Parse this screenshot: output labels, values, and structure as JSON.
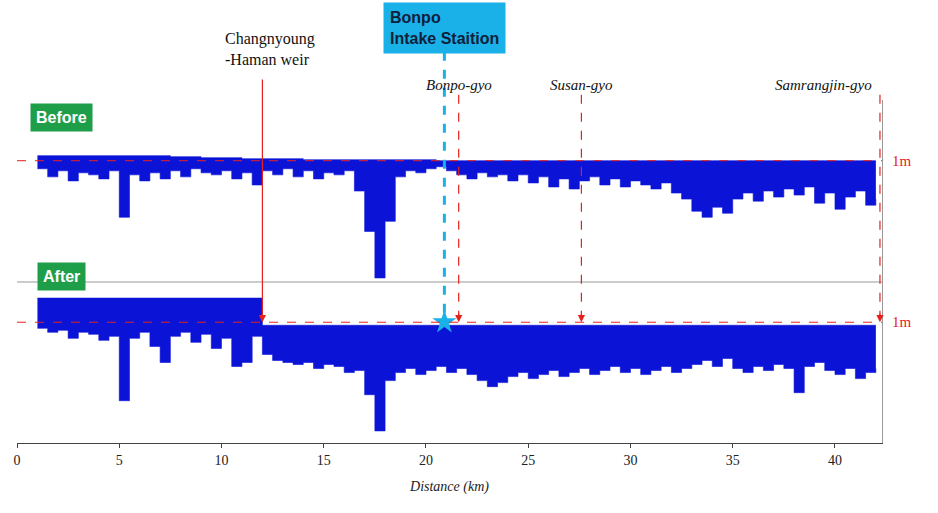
{
  "chart_data": {
    "type": "area",
    "x_label": "Distance (km)",
    "xlim": [
      0,
      42.3
    ],
    "xticks": [
      0,
      5,
      10,
      15,
      20,
      25,
      30,
      35,
      40
    ],
    "tick_labels": "x",
    "grid": false,
    "x": [
      1,
      1.5,
      2,
      2.5,
      3,
      3.5,
      4,
      4.5,
      5,
      5.5,
      6,
      6.5,
      7,
      7.5,
      8,
      8.5,
      9,
      9.5,
      10,
      10.5,
      11,
      11.5,
      12,
      12.5,
      13,
      13.5,
      14,
      14.5,
      15,
      15.5,
      16,
      16.5,
      17,
      17.5,
      18,
      18.5,
      19,
      19.5,
      20,
      20.5,
      21,
      21.5,
      22,
      22.5,
      23,
      23.5,
      24,
      24.5,
      25,
      25.5,
      26,
      26.5,
      27,
      27.5,
      28,
      28.5,
      29,
      29.5,
      30,
      30.5,
      31,
      31.5,
      32,
      32.5,
      33,
      33.5,
      34,
      34.5,
      35,
      35.5,
      36,
      36.5,
      37,
      37.5,
      38,
      38.5,
      39,
      39.5,
      40,
      40.5,
      41,
      41.5,
      42
    ],
    "panels": [
      {
        "title": "Before",
        "ylim": [
          -5,
          4
        ],
        "reference": {
          "value": 1,
          "label": "1m",
          "color": "#e8201c",
          "line_style": "dashed"
        },
        "series": [
          {
            "color": "#0b14d6",
            "base": [
              1.25,
              1.25,
              1.25,
              1.25,
              1.25,
              1.25,
              1.25,
              1.25,
              1.25,
              1.25,
              1.25,
              1.25,
              1.25,
              1.2,
              1.2,
              1.2,
              1.15,
              1.15,
              1.15,
              1.15,
              1.1,
              1.1,
              1.1,
              1.1,
              1.1,
              1.1,
              1.05,
              1.05,
              1.05,
              1.05,
              1.05,
              1.05,
              1.05,
              1.05,
              1.05,
              1.05,
              1.05,
              1.05,
              1.05,
              1.0,
              1.0,
              1.0,
              1.0,
              1.0,
              1.0,
              1.0,
              1.0,
              1.0,
              1.0,
              1.0,
              1.0,
              1.0,
              1.0,
              1.0,
              1.0,
              1.0,
              1.0,
              1.0,
              1.0,
              1.0,
              1.0,
              1.0,
              1.0,
              1.0,
              1.0,
              1.0,
              1.0,
              1.0,
              1.0,
              1.0,
              1.0,
              1.0,
              1.0,
              1.0,
              1.0,
              1.0,
              1.0,
              1.0,
              1.0,
              1.0,
              1.0,
              1.0,
              1.0
            ],
            "values": [
              0.6,
              0.2,
              0.5,
              0.0,
              0.4,
              0.3,
              0.1,
              0.5,
              -1.8,
              0.3,
              0.0,
              0.4,
              0.1,
              0.5,
              0.2,
              0.6,
              0.4,
              0.3,
              0.5,
              0.1,
              0.4,
              -0.2,
              0.5,
              0.3,
              0.6,
              0.2,
              0.5,
              0.1,
              0.4,
              0.3,
              0.5,
              -0.5,
              -2.5,
              -4.8,
              -2.0,
              0.2,
              0.5,
              0.4,
              0.6,
              0.7,
              0.5,
              0.3,
              0.1,
              0.4,
              0.2,
              0.3,
              0.0,
              0.3,
              -0.1,
              0.2,
              -0.3,
              0.1,
              -0.4,
              0.0,
              0.2,
              -0.2,
              0.1,
              -0.3,
              0.0,
              -0.2,
              -0.4,
              -0.1,
              -0.6,
              -0.9,
              -1.5,
              -1.8,
              -1.3,
              -1.6,
              -0.9,
              -0.6,
              -1.0,
              -0.5,
              -0.8,
              -0.4,
              -0.7,
              -0.3,
              -1.1,
              -0.6,
              -1.4,
              -0.8,
              -0.5,
              -1.2,
              -0.9
            ]
          }
        ]
      },
      {
        "title": "After",
        "ylim": [
          -5,
          3
        ],
        "reference": {
          "value": 1,
          "label": "1m",
          "color": "#e8201c",
          "line_style": "dashed"
        },
        "series": [
          {
            "color": "#0b14d6",
            "base": [
              2.2,
              2.2,
              2.2,
              2.2,
              2.2,
              2.2,
              2.2,
              2.2,
              2.2,
              2.2,
              2.2,
              2.2,
              2.2,
              2.2,
              2.2,
              2.2,
              2.2,
              2.2,
              2.2,
              2.2,
              2.2,
              2.2,
              0.85,
              0.85,
              0.85,
              0.85,
              0.85,
              0.85,
              0.85,
              0.85,
              0.85,
              0.85,
              0.85,
              0.85,
              0.85,
              0.85,
              0.85,
              0.85,
              0.85,
              0.85,
              0.85,
              0.85,
              0.85,
              0.85,
              0.85,
              0.85,
              0.85,
              0.85,
              0.85,
              0.85,
              0.85,
              0.85,
              0.85,
              0.85,
              0.85,
              0.85,
              0.85,
              0.85,
              0.85,
              0.85,
              0.85,
              0.85,
              0.85,
              0.85,
              0.85,
              0.85,
              0.85,
              0.85,
              0.85,
              0.85,
              0.85,
              0.85,
              0.85,
              0.85,
              0.85,
              0.85,
              0.85,
              0.85,
              0.85,
              0.85,
              0.85,
              0.85,
              0.85
            ],
            "values": [
              0.7,
              0.5,
              0.6,
              0.2,
              0.5,
              0.4,
              0.1,
              0.3,
              -2.9,
              0.2,
              0.5,
              -0.2,
              -1.0,
              0.3,
              0.5,
              0.0,
              0.4,
              -0.3,
              0.2,
              -1.2,
              -1.0,
              0.3,
              -0.6,
              -0.9,
              -1.0,
              -1.1,
              -1.0,
              -1.3,
              -1.1,
              -1.2,
              -1.5,
              -1.4,
              -2.6,
              -4.4,
              -1.9,
              -1.5,
              -1.3,
              -1.6,
              -1.4,
              -1.2,
              -1.5,
              -1.3,
              -1.6,
              -1.9,
              -2.2,
              -2.0,
              -1.7,
              -1.5,
              -1.8,
              -1.6,
              -1.4,
              -1.7,
              -1.5,
              -1.3,
              -1.6,
              -1.4,
              -1.2,
              -1.5,
              -1.3,
              -1.6,
              -1.4,
              -1.2,
              -1.5,
              -1.3,
              -1.1,
              -0.9,
              -1.2,
              -0.8,
              -1.3,
              -1.5,
              -1.2,
              -1.4,
              -1.1,
              -1.3,
              -2.5,
              -1.2,
              -1.0,
              -1.4,
              -1.6,
              -1.3,
              -1.8,
              -1.5,
              -1.3
            ]
          }
        ]
      }
    ],
    "weir": {
      "text": "Changnyoung\n-Haman weir",
      "x": 12.0,
      "color": "#e8201c",
      "line_style": "solid"
    },
    "bridges": [
      {
        "text": "Bonpo-gyo",
        "x": 21.6,
        "color": "#e8201c",
        "line_style": "dashed"
      },
      {
        "text": "Susan-gyo",
        "x": 27.6,
        "color": "#e8201c",
        "line_style": "dashed"
      },
      {
        "text": "Samrangjin-gyo",
        "x": 42.2,
        "color": "#e8201c",
        "line_style": "dashed"
      }
    ],
    "intake": {
      "text": "Bonpo\nIntake Staition",
      "x": 20.9,
      "color": "#1ab0e8",
      "marker": "star",
      "line_style": "dashed"
    }
  }
}
